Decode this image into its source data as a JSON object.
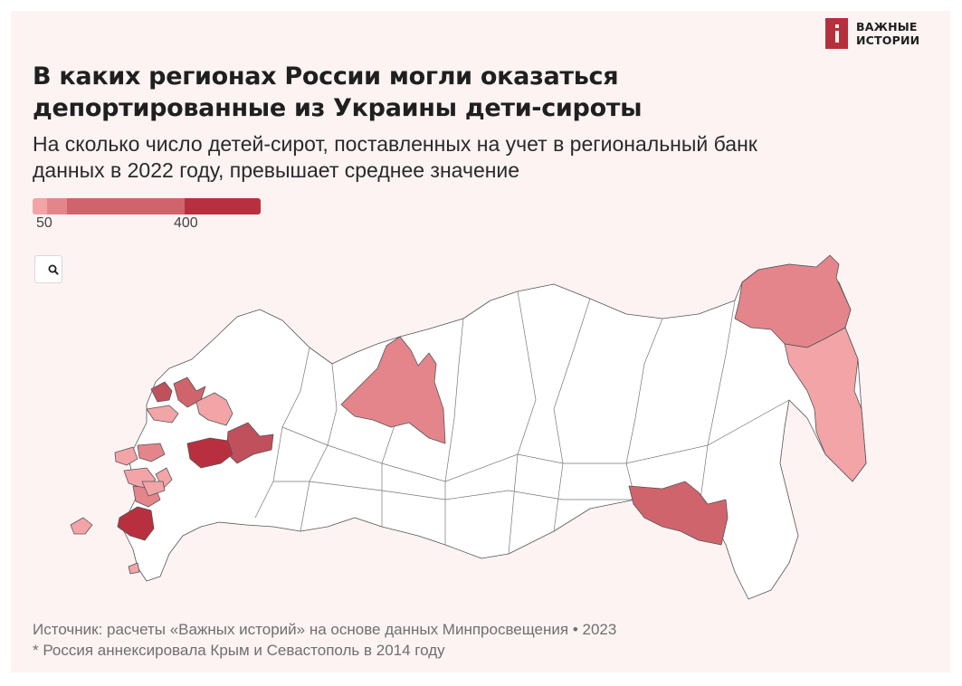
{
  "brand": {
    "line1": "ВАЖНЫЕ",
    "line2": "ИСТОРИИ"
  },
  "title": {
    "line1": "В каких регионах России могли оказаться",
    "line2": "депортированные из Украины дети-сироты"
  },
  "subtitle": {
    "line1": "На сколько число детей-сирот, поставленных на учет в региональный банк",
    "line2": "данных в 2022 году, превышает среднее значение"
  },
  "legend": {
    "colors": [
      "#f2a4a7",
      "#e4858c",
      "#d0646d",
      "#c0505c",
      "#b8303f"
    ],
    "tick_labels": [
      "50",
      "400"
    ]
  },
  "zoom_button": {
    "icon": "search-icon"
  },
  "map_data": {
    "type": "choropleth",
    "base_map": "Russia federal subjects",
    "no_data_fill": "#ffffff",
    "outline_color": "#555555"
  },
  "footer": {
    "source": "Источник: расчеты «Важных историй» на основе данных Минпросвещения • 2023",
    "note": "* Россия аннексировала Крым и Севастополь в 2014 году"
  }
}
